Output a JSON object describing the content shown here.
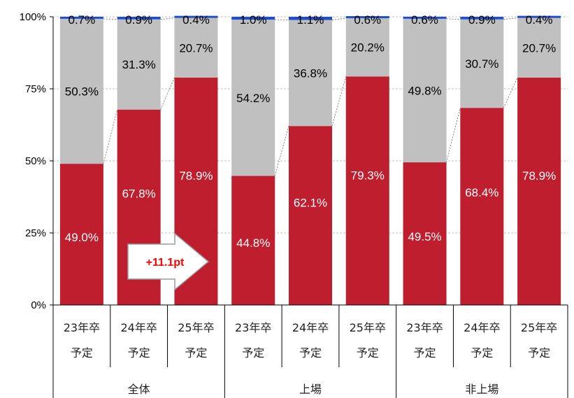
{
  "chart_data": {
    "type": "bar",
    "stacked": true,
    "y_ticks": [
      "0%",
      "25%",
      "50%",
      "75%",
      "100%"
    ],
    "ylim": [
      0,
      100
    ],
    "grid": true,
    "categories": [
      "23年卒予定",
      "24年卒予定",
      "25年卒予定",
      "23年卒予定",
      "24年卒予定",
      "25年卒予定",
      "23年卒予定",
      "24年卒予定",
      "25年卒予定"
    ],
    "category_lines": [
      [
        "23年卒",
        "予定"
      ],
      [
        "24年卒",
        "予定"
      ],
      [
        "25年卒",
        "予定"
      ],
      [
        "23年卒",
        "予定"
      ],
      [
        "24年卒",
        "予定"
      ],
      [
        "25年卒",
        "予定"
      ],
      [
        "23年卒",
        "予定"
      ],
      [
        "24年卒",
        "予定"
      ],
      [
        "25年卒",
        "予定"
      ]
    ],
    "groups": [
      "全体",
      "上場",
      "非上場"
    ],
    "series": [
      {
        "color": "#be1e2d",
        "values": [
          49.0,
          67.8,
          78.9,
          44.8,
          62.1,
          79.3,
          49.5,
          68.4,
          78.9
        ],
        "labels": [
          "49.0%",
          "67.8%",
          "78.9%",
          "44.8%",
          "62.1%",
          "79.3%",
          "49.5%",
          "68.4%",
          "78.9%"
        ]
      },
      {
        "color": "#c0c0c0",
        "values": [
          50.3,
          31.3,
          20.7,
          54.2,
          36.8,
          20.2,
          49.8,
          30.7,
          20.7
        ],
        "labels": [
          "50.3%",
          "31.3%",
          "20.7%",
          "54.2%",
          "36.8%",
          "20.2%",
          "49.8%",
          "30.7%",
          "20.7%"
        ]
      },
      {
        "color": "#1f4ec8",
        "values": [
          0.7,
          0.9,
          0.4,
          1.0,
          1.1,
          0.6,
          0.6,
          0.9,
          0.4
        ],
        "labels": [
          "0.7%",
          "0.9%",
          "0.4%",
          "1.0%",
          "1.1%",
          "0.6%",
          "0.6%",
          "0.9%",
          "0.4%"
        ]
      }
    ],
    "annotation": "+11.1pt"
  }
}
